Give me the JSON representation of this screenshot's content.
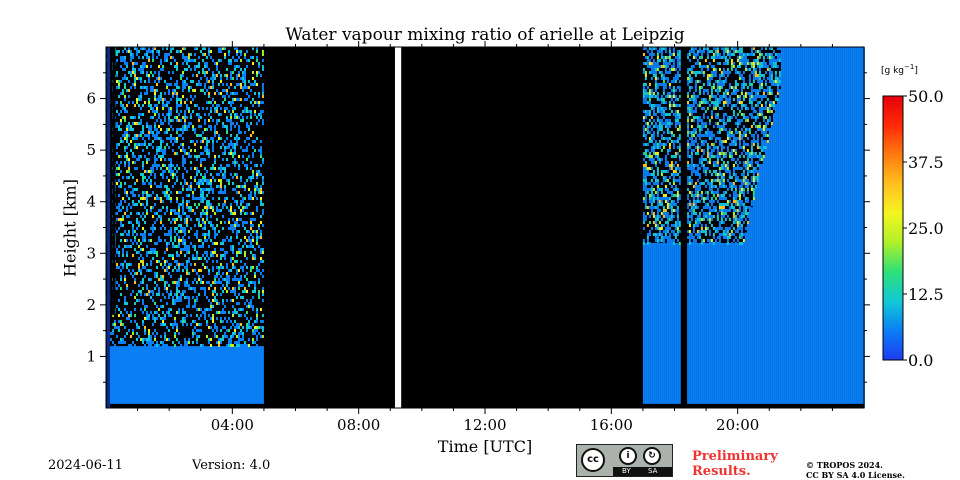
{
  "chart_data": {
    "type": "heatmap",
    "title": "Water vapour mixing ratio of arielle at Leipzig",
    "xlabel": "Time [UTC]",
    "ylabel": "Height [km]",
    "xlim_hours": [
      0,
      24
    ],
    "ylim_km": [
      0,
      7
    ],
    "x_ticks": [
      {
        "hour": 4,
        "label": "04:00"
      },
      {
        "hour": 8,
        "label": "08:00"
      },
      {
        "hour": 12,
        "label": "12:00"
      },
      {
        "hour": 16,
        "label": "16:00"
      },
      {
        "hour": 20,
        "label": "20:00"
      }
    ],
    "y_ticks": [
      {
        "km": 1,
        "label": "1"
      },
      {
        "km": 2,
        "label": "2"
      },
      {
        "km": 3,
        "label": "3"
      },
      {
        "km": 4,
        "label": "4"
      },
      {
        "km": 5,
        "label": "5"
      },
      {
        "km": 6,
        "label": "6"
      }
    ],
    "colorbar": {
      "unit": "[g kg",
      "unit_exp": "−1",
      "unit_close": "]",
      "min": 0,
      "max": 50,
      "ticks": [
        "0.0",
        "12.5",
        "25.0",
        "37.5",
        "50.0"
      ],
      "colors": [
        "#1e3cf0",
        "#0a7ef5",
        "#12c8d6",
        "#2ee07a",
        "#aef02a",
        "#f5f520",
        "#ffc020",
        "#ff7a10",
        "#ff2a08",
        "#e6000a"
      ]
    },
    "regions": [
      {
        "name": "morning-measurement",
        "start_hour": 0.0,
        "end_hour": 5.0,
        "valid_top_km": 1.2,
        "noise_top_km": 7.0
      },
      {
        "name": "no-data-block-1",
        "start_hour": 5.0,
        "end_hour": 9.15,
        "fill": "black"
      },
      {
        "name": "data-gap",
        "start_hour": 9.15,
        "end_hour": 9.35,
        "fill": "white"
      },
      {
        "name": "no-data-block-2",
        "start_hour": 9.35,
        "end_hour": 17.0,
        "fill": "black"
      },
      {
        "name": "evening-measurement",
        "start_hour": 17.0,
        "end_hour": 24.0,
        "valid_top_km": 3.2,
        "noise_top_km": 7.0
      }
    ],
    "typical_value_gkg": 4
  },
  "footer": {
    "date": "2024-06-11",
    "version": "Version: 4.0",
    "preliminary": "Preliminary\nResults.",
    "copyright": "© TROPOS 2024.\nCC BY SA 4.0 License.",
    "license_badge": {
      "cc": "cc",
      "by": "BY",
      "sa": "SA",
      "by_glyph": "i",
      "sa_glyph": "↻"
    }
  }
}
